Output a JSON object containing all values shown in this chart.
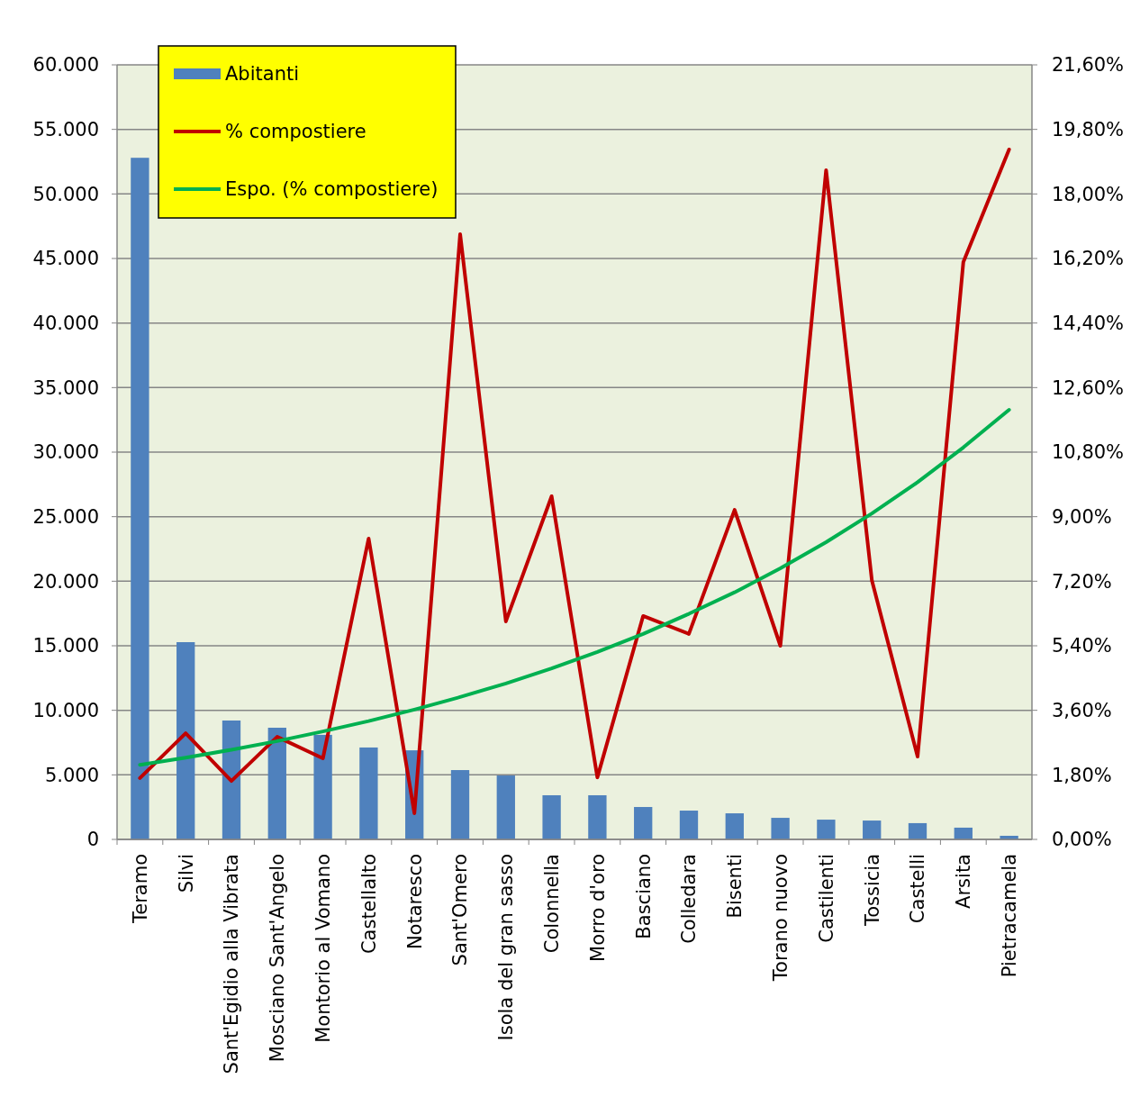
{
  "chart_data": {
    "type": "bar",
    "categories": [
      "Teramo",
      "Silvi",
      "Sant'Egidio alla Vibrata",
      "Mosciano Sant'Angelo",
      "Montorio al Vomano",
      "Castellalto",
      "Notaresco",
      "Sant'Omero",
      "Isola del gran sasso",
      "Colonnella",
      "Morro d'oro",
      "Basciano",
      "Colledara",
      "Bisenti",
      "Torano nuovo",
      "Castilenti",
      "Tossicia",
      "Castelli",
      "Arsita",
      "Pietracamela"
    ],
    "series": [
      {
        "name": "Abitanti",
        "color": "#4f81bd",
        "values": [
          52800,
          15280,
          9210,
          8650,
          8100,
          7120,
          6900,
          5370,
          4950,
          3420,
          3420,
          2510,
          2230,
          2020,
          1670,
          1530,
          1460,
          1260,
          910,
          280
        ]
      },
      {
        "name": "% compostiere",
        "type": "line",
        "axis": "y2",
        "color": "#c00000",
        "values": [
          1.71,
          2.96,
          1.63,
          2.86,
          2.26,
          8.39,
          0.73,
          16.88,
          6.08,
          9.57,
          1.73,
          6.23,
          5.73,
          9.19,
          5.4,
          18.66,
          7.23,
          2.31,
          16.1,
          19.24
        ]
      },
      {
        "name": "Espo. (% compostiere)",
        "type": "line",
        "axis": "y2",
        "color": "#00b050",
        "values": [
          2.08,
          2.28,
          2.5,
          2.74,
          3.01,
          3.3,
          3.62,
          3.97,
          4.35,
          4.77,
          5.23,
          5.73,
          6.29,
          6.89,
          7.56,
          8.29,
          9.09,
          9.96,
          10.93,
          11.98
        ]
      }
    ],
    "ylim": [
      0,
      60000
    ],
    "yticks": [
      0,
      {
        "value": 5000,
        "label": "5.000"
      },
      {
        "value": 10000,
        "label": "10.000"
      },
      {
        "value": 15000,
        "label": "15.000"
      },
      {
        "value": 20000,
        "label": "20.000"
      },
      {
        "value": 25000,
        "label": "25.000"
      },
      {
        "value": 30000,
        "label": "30.000"
      },
      {
        "value": 35000,
        "label": "35.000"
      },
      {
        "value": 40000,
        "label": "40.000"
      },
      {
        "value": 45000,
        "label": "45.000"
      },
      {
        "value": 50000,
        "label": "50.000"
      },
      {
        "value": 55000,
        "label": "55.000"
      },
      {
        "value": 60000,
        "label": "60.000"
      }
    ],
    "y2lim": [
      0,
      21.6
    ],
    "y2ticks": [
      {
        "value": 0,
        "label": "0,00%"
      },
      {
        "value": 1.8,
        "label": "1,80%"
      },
      {
        "value": 3.6,
        "label": "3,60%"
      },
      {
        "value": 5.4,
        "label": "5,40%"
      },
      {
        "value": 7.2,
        "label": "7,20%"
      },
      {
        "value": 9,
        "label": "9,00%"
      },
      {
        "value": 10.8,
        "label": "10,80%"
      },
      {
        "value": 12.6,
        "label": "12,60%"
      },
      {
        "value": 14.4,
        "label": "14,40%"
      },
      {
        "value": 16.2,
        "label": "16,20%"
      },
      {
        "value": 18,
        "label": "18,00%"
      },
      {
        "value": 19.8,
        "label": "19,80%"
      },
      {
        "value": 21.6,
        "label": "21,60%"
      }
    ],
    "grid": "y",
    "legend": "top left",
    "marker": "none",
    "line_style": "solid"
  }
}
